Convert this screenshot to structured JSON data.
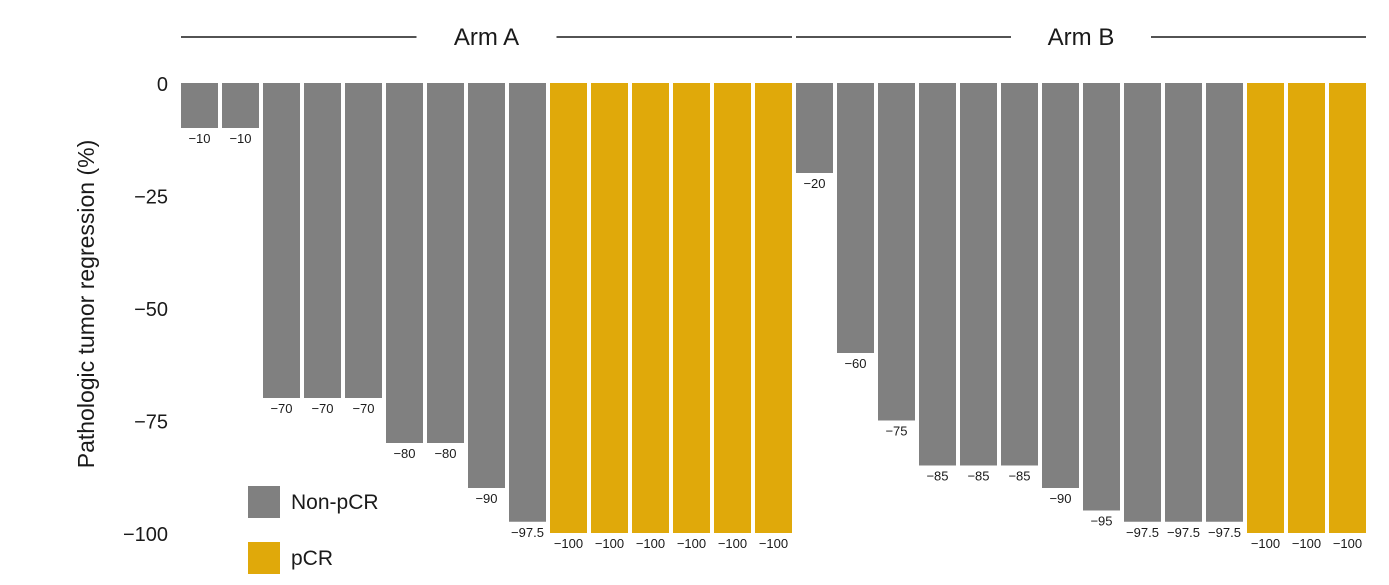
{
  "chart_data": {
    "type": "bar",
    "ylabel": "Pathologic tumor regression (%)",
    "ylim": [
      -100,
      0
    ],
    "yticks": [
      0,
      -25,
      -50,
      -75,
      -100
    ],
    "ytick_labels": [
      "0",
      "−25",
      "−50",
      "−75",
      "−100"
    ],
    "legend": {
      "position": "bottom-left",
      "items": [
        {
          "label": "Non-pCR",
          "color": "#808080"
        },
        {
          "label": "pCR",
          "color": "#e0a90a"
        }
      ]
    },
    "groups": [
      {
        "name": "Arm A",
        "values": [
          -10,
          -10,
          -70,
          -70,
          -70,
          -80,
          -80,
          -90,
          -97.5,
          -100,
          -100,
          -100,
          -100,
          -100,
          -100
        ],
        "labels": [
          "−10",
          "−10",
          "−70",
          "−70",
          "−70",
          "−80",
          "−80",
          "−90",
          "−97.5",
          "−100",
          "−100",
          "−100",
          "−100",
          "−100",
          "−100"
        ],
        "pcr": [
          false,
          false,
          false,
          false,
          false,
          false,
          false,
          false,
          false,
          true,
          true,
          true,
          true,
          true,
          true
        ]
      },
      {
        "name": "Arm B",
        "values": [
          -20,
          -60,
          -75,
          -85,
          -85,
          -85,
          -90,
          -95,
          -97.5,
          -97.5,
          -97.5,
          -100,
          -100,
          -100
        ],
        "labels": [
          "−20",
          "−60",
          "−75",
          "−85",
          "−85",
          "−85",
          "−90",
          "−95",
          "−97.5",
          "−97.5",
          "−97.5",
          "−100",
          "−100",
          "−100"
        ],
        "pcr": [
          false,
          false,
          false,
          false,
          false,
          false,
          false,
          false,
          false,
          false,
          false,
          true,
          true,
          true
        ]
      }
    ]
  }
}
